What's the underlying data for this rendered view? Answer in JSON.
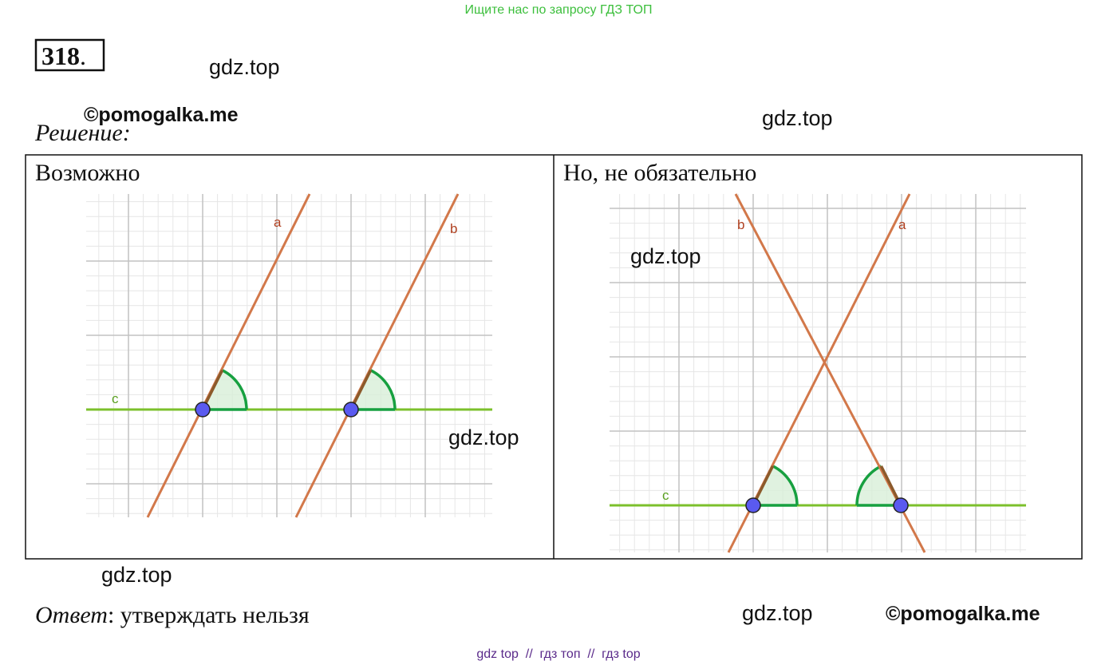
{
  "header_note": "Ищите нас по запросу ГДЗ ТОП",
  "problem_number": "318",
  "problem_number_suffix": ".",
  "watermarks": [
    "gdz.top",
    "gdz.top",
    "gdz.top",
    "gdz.top",
    "gdz.top",
    "gdz.top"
  ],
  "copyright": [
    "©pomogalka.me",
    "©pomogalka.me"
  ],
  "solution_label": "Решение:",
  "panels": [
    {
      "caption": "Возможно",
      "line_labels": [
        "a",
        "b",
        "c"
      ]
    },
    {
      "caption": "Но, не обязательно",
      "line_labels": [
        "b",
        "a",
        "c"
      ]
    }
  ],
  "answer_label": "Ответ",
  "answer_text": ": утверждать нельзя",
  "footer": "gdz top  //  гдз топ  //  гдз top"
}
